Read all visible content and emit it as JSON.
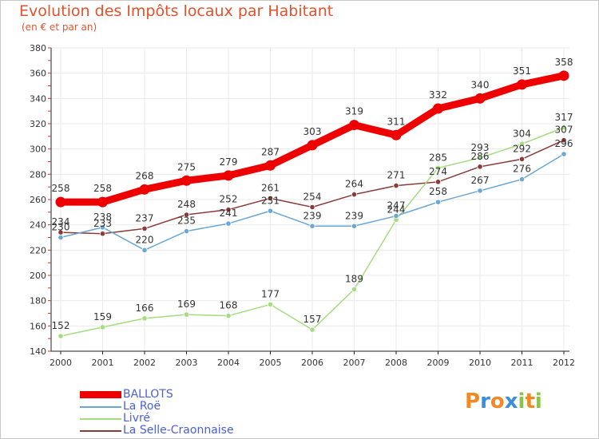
{
  "header": {
    "title": "Evolution des Impôts locaux par Habitant",
    "subtitle": "(en € et par an)"
  },
  "colors": {
    "title": "#e0532e",
    "legend_text": "#4a5fe0",
    "axis": "#222222",
    "grid": "#eaeaea",
    "label": "#333333"
  },
  "logo": {
    "letters": [
      "P",
      "r",
      "o",
      "x",
      "i",
      "t",
      "i"
    ],
    "colors": [
      "#f08a24",
      "#3a8fd8",
      "#f08a24",
      "#3a8fd8",
      "#8bc34a",
      "#f08a24",
      "#8bc34a"
    ]
  },
  "chart_data": {
    "type": "line",
    "x": [
      "2000",
      "2001",
      "2002",
      "2003",
      "2004",
      "2005",
      "2006",
      "2007",
      "2008",
      "2009",
      "2010",
      "2011",
      "2012"
    ],
    "ylim": [
      140,
      380
    ],
    "yticks": [
      "140",
      "160",
      "180",
      "200",
      "220",
      "240",
      "260",
      "280",
      "300",
      "320",
      "340",
      "360",
      "380"
    ],
    "grid": true,
    "legend_position": "bottom-left",
    "series": [
      {
        "name": "BALLOTS",
        "color": "#ee0000",
        "values": [
          258,
          258,
          268,
          275,
          279,
          287,
          303,
          319,
          311,
          332,
          340,
          351,
          358
        ],
        "labels": [
          "258",
          "258",
          "268",
          "275",
          "279",
          "287",
          "303",
          "319",
          "311",
          "332",
          "340",
          "351",
          "358"
        ]
      },
      {
        "name": "La Roë",
        "color": "#6aa6d6",
        "values": [
          230,
          238,
          220,
          235,
          241,
          251,
          239,
          239,
          247,
          258,
          267,
          276,
          296
        ],
        "labels": [
          "230",
          "238",
          "220",
          "235",
          "241",
          "251",
          "239",
          "239",
          "247",
          "258",
          "267",
          "276",
          "296"
        ]
      },
      {
        "name": "Livré",
        "color": "#a4dc80",
        "values": [
          152,
          159,
          166,
          169,
          168,
          177,
          157,
          189,
          244,
          285,
          293,
          304,
          317
        ],
        "labels": [
          "152",
          "159",
          "166",
          "169",
          "168",
          "177",
          "157",
          "189",
          "244",
          "285",
          "293",
          "304",
          "317"
        ]
      },
      {
        "name": "La Selle-Craonnaise",
        "color": "#8b3a3a",
        "values": [
          234,
          233,
          237,
          248,
          252,
          261,
          254,
          264,
          271,
          274,
          286,
          292,
          307
        ],
        "labels": [
          "234",
          "233",
          "237",
          "248",
          "252",
          "261",
          "254",
          "264",
          "271",
          "274",
          "286",
          "292",
          "307"
        ]
      }
    ]
  }
}
